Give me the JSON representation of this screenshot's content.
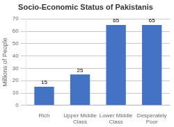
{
  "chart_data": {
    "type": "bar",
    "title": "Socio-Economic Status of Pakistanis",
    "categories": [
      "Rich",
      "Upper Middle\nClass",
      "Lower Middle\nClass",
      "Desperately\nPoor"
    ],
    "values": [
      15,
      25,
      65,
      65
    ],
    "color": "#4472C4",
    "ylabel": "Millions of People",
    "ylim": [
      0,
      70
    ],
    "yticks": [
      0,
      10,
      20,
      30,
      40,
      50,
      60,
      70
    ],
    "grid": true,
    "data_labels": true
  }
}
